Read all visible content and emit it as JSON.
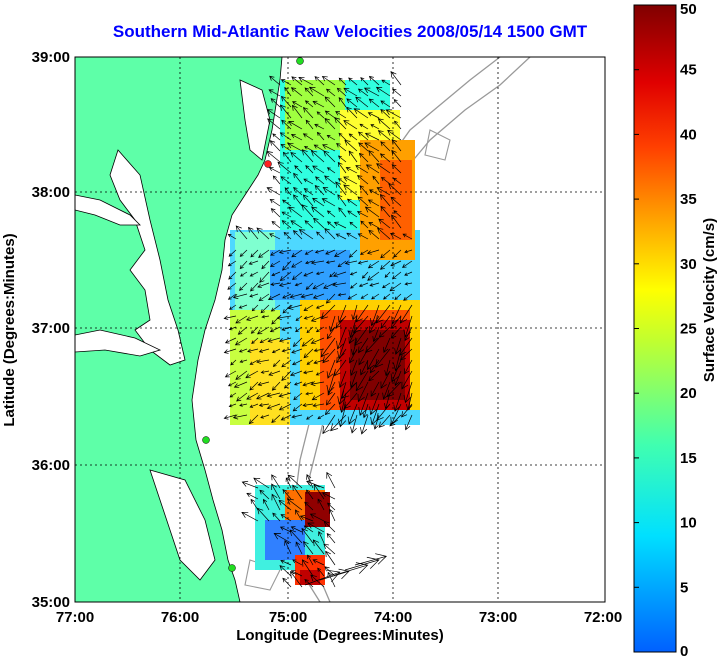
{
  "title": "Southern Mid-Atlantic Raw Velocities 2008/05/14 1500 GMT",
  "xlabel": "Longitude (Degrees:Minutes)",
  "ylabel": "Latitude (Degrees:Minutes)",
  "x_ticks": [
    "77:00",
    "76:00",
    "75:00",
    "74:00",
    "73:00",
    "72:00"
  ],
  "y_ticks": [
    "39:00",
    "38:00",
    "37:00",
    "36:00",
    "35:00"
  ],
  "colorbar": {
    "label": "Surface Velocity (cm/s)",
    "ticks": [
      "0",
      "5",
      "10",
      "15",
      "20",
      "25",
      "30",
      "35",
      "40",
      "45",
      "50"
    ],
    "min": 0,
    "max": 50
  },
  "colors": {
    "land": "#5effa8",
    "title": "#0000ff"
  }
}
